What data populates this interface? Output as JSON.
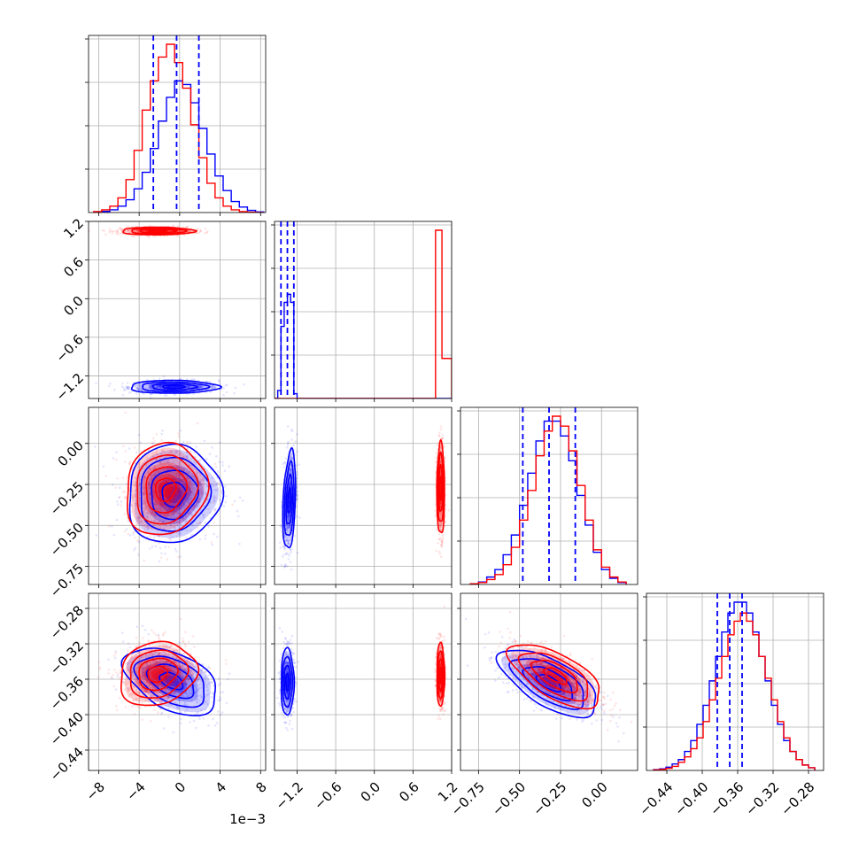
{
  "chart_data": {
    "type": "corner",
    "parameters": 4,
    "series": [
      {
        "color": "#ff0000"
      },
      {
        "color": "#0000ff"
      }
    ],
    "colors": {
      "red": "#ff0000",
      "blue": "#0000ff",
      "grid": "#b0b0b0"
    },
    "grid": true,
    "axes": [
      {
        "range": [
          -9,
          8.5
        ],
        "ticks": [
          -8,
          -4,
          0,
          4,
          8
        ],
        "tick_labels": [
          "−8",
          "−4",
          "0",
          "4",
          "8"
        ],
        "offset_text": "1e−3"
      },
      {
        "range": [
          -1.55,
          1.2
        ],
        "ticks": [
          -1.2,
          -0.6,
          0.0,
          0.6,
          1.2
        ],
        "tick_labels": [
          "−1.2",
          "−0.6",
          "0.0",
          "0.6",
          "1.2"
        ]
      },
      {
        "range": [
          -0.86,
          0.22
        ],
        "ticks": [
          -0.75,
          -0.5,
          -0.25,
          0.0
        ],
        "tick_labels": [
          "−0.75",
          "−0.50",
          "−0.25",
          "0.00"
        ]
      },
      {
        "range": [
          -0.463,
          -0.263
        ],
        "ticks": [
          -0.44,
          -0.4,
          -0.36,
          -0.32,
          -0.28
        ],
        "tick_labels": [
          "−0.44",
          "−0.40",
          "−0.36",
          "−0.32",
          "−0.28"
        ]
      }
    ],
    "diagonal": [
      {
        "param": 0,
        "quantiles_blue": [
          -2.6,
          -0.3,
          1.9
        ],
        "bin_edges": [
          -8.5,
          -7.7,
          -6.9,
          -6.1,
          -5.3,
          -4.5,
          -3.7,
          -2.9,
          -2.1,
          -1.3,
          -0.5,
          0.3,
          1.1,
          1.9,
          2.7,
          3.5,
          4.3,
          5.1,
          5.9,
          6.7,
          7.5,
          8.3
        ],
        "red": [
          0.5,
          1.5,
          3.5,
          8,
          18,
          34,
          56,
          72,
          85,
          92,
          82,
          68,
          48,
          30,
          16,
          8,
          3.5,
          1.5,
          0.5,
          0.2,
          0
        ],
        "blue": [
          0.2,
          0.6,
          1.5,
          3.5,
          7,
          13,
          22,
          35,
          50,
          63,
          72,
          70,
          60,
          46,
          32,
          20,
          12,
          6,
          3,
          1.2,
          0.3
        ]
      },
      {
        "param": 1,
        "quantiles_blue": [
          -1.45,
          -1.35,
          -1.25
        ],
        "bin_edges": [
          -1.55,
          -1.5,
          -1.45,
          -1.4,
          -1.35,
          -1.3,
          -1.25,
          -1.2,
          -1.1,
          0.95,
          1.05,
          1.2
        ],
        "red": [
          0,
          0,
          0,
          0,
          0,
          0,
          0,
          0,
          0,
          105,
          25
        ],
        "blue": [
          0,
          5,
          45,
          60,
          65,
          60,
          3,
          0,
          0,
          0,
          0
        ]
      },
      {
        "param": 2,
        "quantiles_blue": [
          -0.48,
          -0.32,
          -0.16
        ],
        "bin_edges": [
          -0.8,
          -0.75,
          -0.7,
          -0.65,
          -0.6,
          -0.55,
          -0.5,
          -0.45,
          -0.4,
          -0.35,
          -0.3,
          -0.25,
          -0.2,
          -0.15,
          -0.1,
          -0.05,
          0.0,
          0.05,
          0.1,
          0.15
        ],
        "red": [
          0.3,
          0.8,
          2,
          4,
          8,
          15,
          26,
          38,
          52,
          62,
          68,
          64,
          54,
          40,
          26,
          14,
          7,
          3,
          1
        ],
        "blue": [
          0.3,
          1,
          3,
          6,
          12,
          20,
          32,
          45,
          58,
          66,
          66,
          60,
          50,
          36,
          24,
          13,
          6,
          2.5,
          0.8
        ]
      },
      {
        "param": 3,
        "quantiles_blue": [
          -0.383,
          -0.369,
          -0.355
        ],
        "bin_edges": [
          -0.455,
          -0.448,
          -0.441,
          -0.434,
          -0.427,
          -0.42,
          -0.413,
          -0.406,
          -0.399,
          -0.392,
          -0.385,
          -0.378,
          -0.371,
          -0.364,
          -0.357,
          -0.35,
          -0.343,
          -0.336,
          -0.329,
          -0.322,
          -0.315,
          -0.308,
          -0.301,
          -0.294,
          -0.287,
          -0.28,
          -0.273
        ],
        "red": [
          0.2,
          0.4,
          0.8,
          1.5,
          3,
          5,
          8,
          12,
          18,
          26,
          34,
          42,
          50,
          55,
          58,
          55,
          50,
          42,
          34,
          26,
          18,
          12,
          7,
          4,
          2,
          1
        ],
        "blue": [
          0.3,
          0.6,
          1.2,
          2.4,
          4,
          7,
          11,
          17,
          24,
          33,
          42,
          51,
          58,
          62,
          62,
          58,
          51,
          42,
          33,
          24,
          17,
          11,
          7,
          4,
          2,
          1
        ]
      }
    ],
    "pairs": [
      {
        "row": 1,
        "col": 0,
        "red_center": [
          -2.2,
          1.05
        ],
        "red_sigma": [
          1.8,
          0.03
        ],
        "red_rho": 0.0,
        "blue_center": [
          -0.6,
          -1.37
        ],
        "blue_sigma": [
          2.2,
          0.05
        ],
        "blue_rho": 0.0
      },
      {
        "row": 2,
        "col": 0,
        "red_center": [
          -1.4,
          -0.28
        ],
        "red_sigma": [
          2.0,
          0.14
        ],
        "red_rho": 0.1,
        "blue_center": [
          -0.6,
          -0.31
        ],
        "blue_sigma": [
          2.3,
          0.15
        ],
        "blue_rho": 0.05
      },
      {
        "row": 2,
        "col": 1,
        "red_center": [
          1.03,
          -0.28
        ],
        "red_sigma": [
          0.03,
          0.14
        ],
        "red_rho": 0.0,
        "blue_center": [
          -1.32,
          -0.35
        ],
        "blue_sigma": [
          0.05,
          0.15
        ],
        "blue_rho": 0.3
      },
      {
        "row": 3,
        "col": 0,
        "red_center": [
          -2.2,
          -0.354
        ],
        "red_sigma": [
          1.9,
          0.018
        ],
        "red_rho": 0.15,
        "blue_center": [
          -0.8,
          -0.362
        ],
        "blue_sigma": [
          2.3,
          0.019
        ],
        "blue_rho": -0.45
      },
      {
        "row": 3,
        "col": 1,
        "red_center": [
          1.03,
          -0.355
        ],
        "red_sigma": [
          0.03,
          0.018
        ],
        "red_rho": 0.0,
        "blue_center": [
          -1.35,
          -0.363
        ],
        "blue_sigma": [
          0.05,
          0.019
        ],
        "blue_rho": 0.0
      },
      {
        "row": 3,
        "col": 2,
        "red_center": [
          -0.28,
          -0.356
        ],
        "red_sigma": [
          0.14,
          0.018
        ],
        "red_rho": -0.65,
        "blue_center": [
          -0.32,
          -0.364
        ],
        "blue_sigma": [
          0.15,
          0.019
        ],
        "blue_rho": -0.65
      }
    ]
  }
}
